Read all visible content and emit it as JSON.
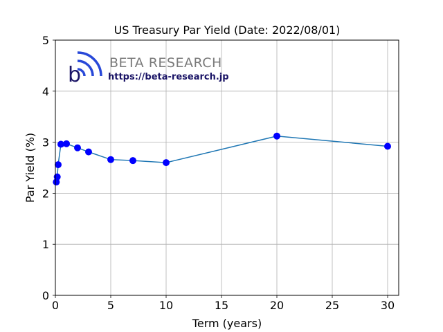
{
  "chart_data": {
    "type": "line",
    "title": "US Treasury Par Yield (Date: 2022/08/01)",
    "xlabel": "Term (years)",
    "ylabel": "Par Yield (%)",
    "xlim": [
      0,
      31
    ],
    "ylim": [
      0,
      5
    ],
    "xticks": [
      0,
      5,
      10,
      15,
      20,
      25,
      30
    ],
    "yticks": [
      0,
      1,
      2,
      3,
      4,
      5
    ],
    "grid": true,
    "line_color": "#1f77b4",
    "marker_color": "#0000ff",
    "series": [
      {
        "x": [
          0.0833,
          0.1667,
          0.25,
          0.5,
          1,
          2,
          3,
          5,
          7,
          10,
          20,
          30
        ],
        "y": [
          2.22,
          2.32,
          2.56,
          2.96,
          2.97,
          2.89,
          2.81,
          2.66,
          2.64,
          2.6,
          3.12,
          2.92
        ]
      }
    ]
  },
  "logo": {
    "name": "BETA RESEARCH",
    "url": "https://beta-research.jp",
    "letter": "b"
  }
}
